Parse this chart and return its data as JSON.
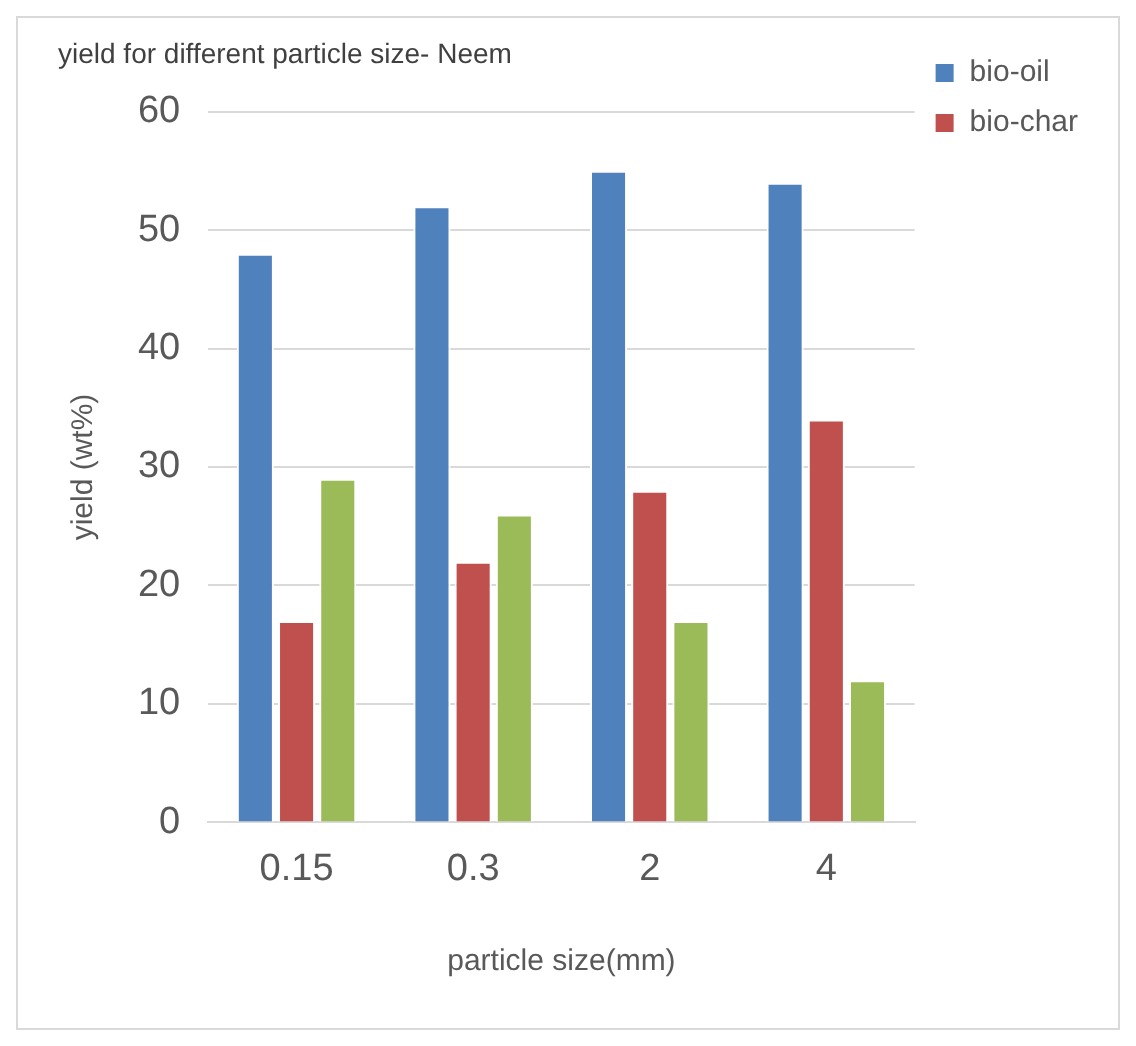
{
  "chart_data": {
    "type": "bar",
    "title": "yield for different particle size- Neem",
    "xlabel": "particle size(mm)",
    "ylabel": "yield (wt%)",
    "categories": [
      "0.15",
      "0.3",
      "2",
      "4"
    ],
    "series": [
      {
        "name": "bio-oil",
        "color": "#4f81bd",
        "values": [
          48,
          52,
          55,
          54
        ]
      },
      {
        "name": "bio-char",
        "color": "#c0504d",
        "values": [
          17,
          22,
          28,
          34
        ]
      },
      {
        "color": "#9bbb59",
        "values": [
          29,
          26,
          17,
          12
        ]
      }
    ],
    "ylim": [
      0,
      60
    ],
    "yticks": [
      0,
      10,
      20,
      30,
      40,
      50,
      60
    ],
    "grid": "y",
    "legend": "right"
  }
}
